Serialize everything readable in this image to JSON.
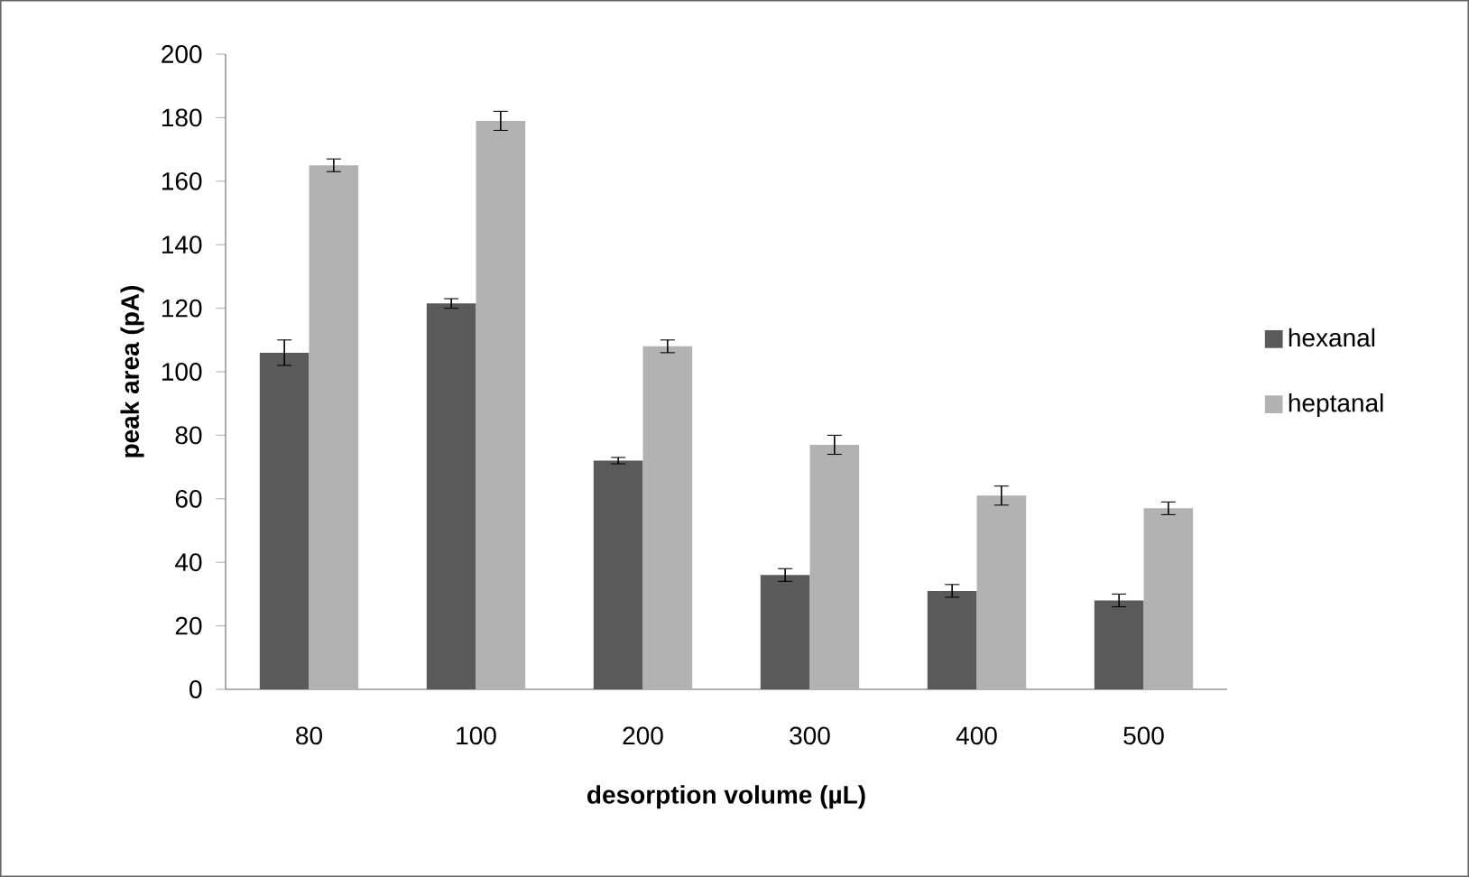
{
  "chart_data": {
    "type": "bar",
    "xlabel": "desorption volume (µL)",
    "ylabel": "peak area (pA)",
    "categories": [
      "80",
      "100",
      "200",
      "300",
      "400",
      "500"
    ],
    "series": [
      {
        "name": "hexanal",
        "color": "#5a5a5a",
        "values": [
          106,
          121.5,
          72,
          36,
          31,
          28
        ],
        "errors": [
          4,
          1.5,
          1,
          2,
          2,
          2
        ]
      },
      {
        "name": "heptanal",
        "color": "#b2b2b2",
        "values": [
          165,
          179,
          108,
          77,
          61,
          57
        ],
        "errors": [
          2,
          3,
          2,
          3,
          3,
          2
        ]
      }
    ],
    "ylim": [
      0,
      200
    ],
    "yticks": [
      0,
      20,
      40,
      60,
      80,
      100,
      120,
      140,
      160,
      180,
      200
    ],
    "grid": false,
    "legend": "right"
  }
}
